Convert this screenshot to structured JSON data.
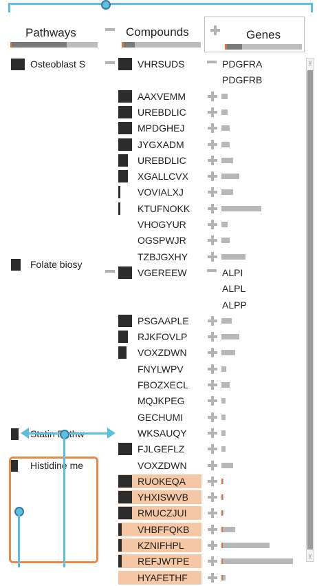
{
  "headers": {
    "pathways": "Pathways",
    "compounds": "Compounds",
    "genes": "Genes"
  },
  "pathways": [
    {
      "label": "Osteoblast S"
    },
    {
      "label": "Folate biosy"
    },
    {
      "label": "Statin Pathw"
    },
    {
      "label": "Histidine me"
    }
  ],
  "compounds": [
    {
      "name": "VHRSUDS",
      "genes": [
        "PDGFRA",
        "PDGFRB"
      ],
      "expanded": true,
      "weight": 1.0
    },
    {
      "name": "AAXVEMM",
      "weight": 1.0,
      "gene_level": 0.15
    },
    {
      "name": "UREBDLIC",
      "weight": 1.0,
      "gene_level": 0.15
    },
    {
      "name": "MPDGHEJ",
      "weight": 1.0,
      "gene_level": 0.2
    },
    {
      "name": "JYGXADM",
      "weight": 1.0,
      "gene_level": 0.2
    },
    {
      "name": "UREBDLIC",
      "weight": 0.7,
      "gene_level": 0.3
    },
    {
      "name": "XGALLCVX",
      "weight": 0.7,
      "gene_level": 0.45
    },
    {
      "name": "VOVIALXJ",
      "weight": 0.15,
      "gene_level": 0.3
    },
    {
      "name": "KTUFNOKK",
      "weight": 0.15,
      "gene_level": 1.0
    },
    {
      "name": "VHOGYUR",
      "weight": 0,
      "gene_level": 0.15
    },
    {
      "name": "OGSPWJR",
      "weight": 0,
      "gene_level": 0.2
    },
    {
      "name": "TZBJGXHY",
      "weight": 0,
      "gene_level": 0.6
    },
    {
      "name": "VGEREEW",
      "genes": [
        "ALPI",
        "ALPL",
        "ALPP"
      ],
      "expanded": true,
      "weight": 1.0
    },
    {
      "name": "PSGAAPLE",
      "weight": 1.0,
      "gene_level": 0.25
    },
    {
      "name": "RJKFOVLP",
      "weight": 0.7,
      "gene_level": 0.45
    },
    {
      "name": "VOXZDWN",
      "weight": 0.6,
      "gene_level": 0.35
    },
    {
      "name": "FNYLWPV",
      "weight": 0,
      "gene_level": 0.12
    },
    {
      "name": "FBOZXECL",
      "weight": 0,
      "gene_level": 0.2
    },
    {
      "name": "MQJKPEG",
      "weight": 0,
      "gene_level": 0.1
    },
    {
      "name": "GECHUMI",
      "weight": 0,
      "gene_level": 0.1
    },
    {
      "name": "WKSAUQY",
      "weight": 0,
      "gene_level": 0.1
    },
    {
      "name": "FJLGEFLZ",
      "weight": 1.0,
      "gene_level": 0.1
    },
    {
      "name": "VOXZDWN",
      "weight": 0,
      "gene_level": 0.3
    },
    {
      "name": "RUOKEQA",
      "weight": 1.0,
      "highlight": true,
      "gene_level": 0.05
    },
    {
      "name": "YHXISWVB",
      "weight": 1.0,
      "highlight": true,
      "gene_level": 0.05
    },
    {
      "name": "RMUCZJUI",
      "weight": 1.0,
      "highlight": true,
      "gene_level": 0.05
    },
    {
      "name": "VHBFFQKB",
      "weight": 0.25,
      "highlight": true,
      "gene_level": 0.35
    },
    {
      "name": "KZNIFHPL",
      "weight": 0.25,
      "highlight": true,
      "gene_level": 1.2
    },
    {
      "name": "REFJWTPE",
      "weight": 0.25,
      "highlight": true,
      "gene_level": 1.8
    },
    {
      "name": "HYAFETHF",
      "weight": 0,
      "highlight": true,
      "gene_level": 0.1
    }
  ],
  "colors": {
    "accent": "#5bc0de",
    "highlight_fill": "#f5c7a5",
    "highlight_border": "#e8894a",
    "bar_gray": "#b7b7b7",
    "bar_dark": "#2c2c2c",
    "orange_mark": "#e0743a"
  }
}
